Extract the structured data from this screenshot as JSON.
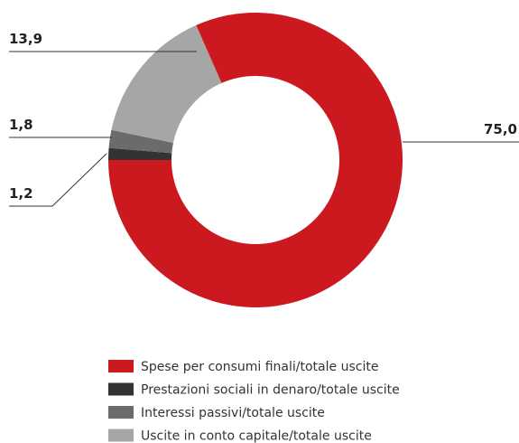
{
  "chart_data": {
    "type": "pie",
    "donut": true,
    "categories": [
      "Spese per consumi finali/totale uscite",
      "Prestazioni sociali in denaro/totale uscite",
      "Interessi passivi/totale uscite",
      "Uscite in conto capitale/totale uscite"
    ],
    "values": [
      75.0,
      1.2,
      1.8,
      13.9
    ],
    "value_labels": [
      "75,0",
      "1,2",
      "1,8",
      "13,9"
    ],
    "colors": [
      "#cc1920",
      "#333333",
      "#6b6b6b",
      "#a6a6a6"
    ]
  }
}
